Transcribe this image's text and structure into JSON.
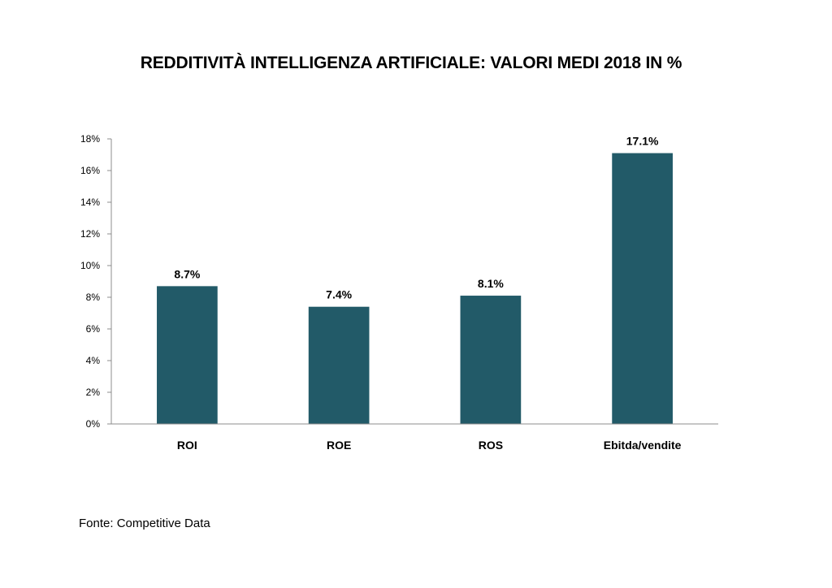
{
  "chart_data": {
    "type": "bar",
    "title": "REDDITIVITÀ INTELLIGENZA ARTIFICIALE: VALORI MEDI 2018 IN %",
    "categories": [
      "ROI",
      "ROE",
      "ROS",
      "Ebitda/vendite"
    ],
    "values": [
      8.7,
      7.4,
      8.1,
      17.1
    ],
    "data_labels": [
      "8.7%",
      "7.4%",
      "8.1%",
      "17.1%"
    ],
    "y_ticks": [
      0,
      2,
      4,
      6,
      8,
      10,
      12,
      14,
      16,
      18
    ],
    "y_tick_labels": [
      "0%",
      "2%",
      "4%",
      "6%",
      "8%",
      "10%",
      "12%",
      "14%",
      "16%",
      "18%"
    ],
    "ylim": [
      0,
      18
    ],
    "xlabel": "",
    "ylabel": "",
    "grid": false,
    "legend": "none",
    "bar_color": "#225a68",
    "axis_color": "#8c8c8c"
  },
  "source": "Fonte: Competitive Data"
}
